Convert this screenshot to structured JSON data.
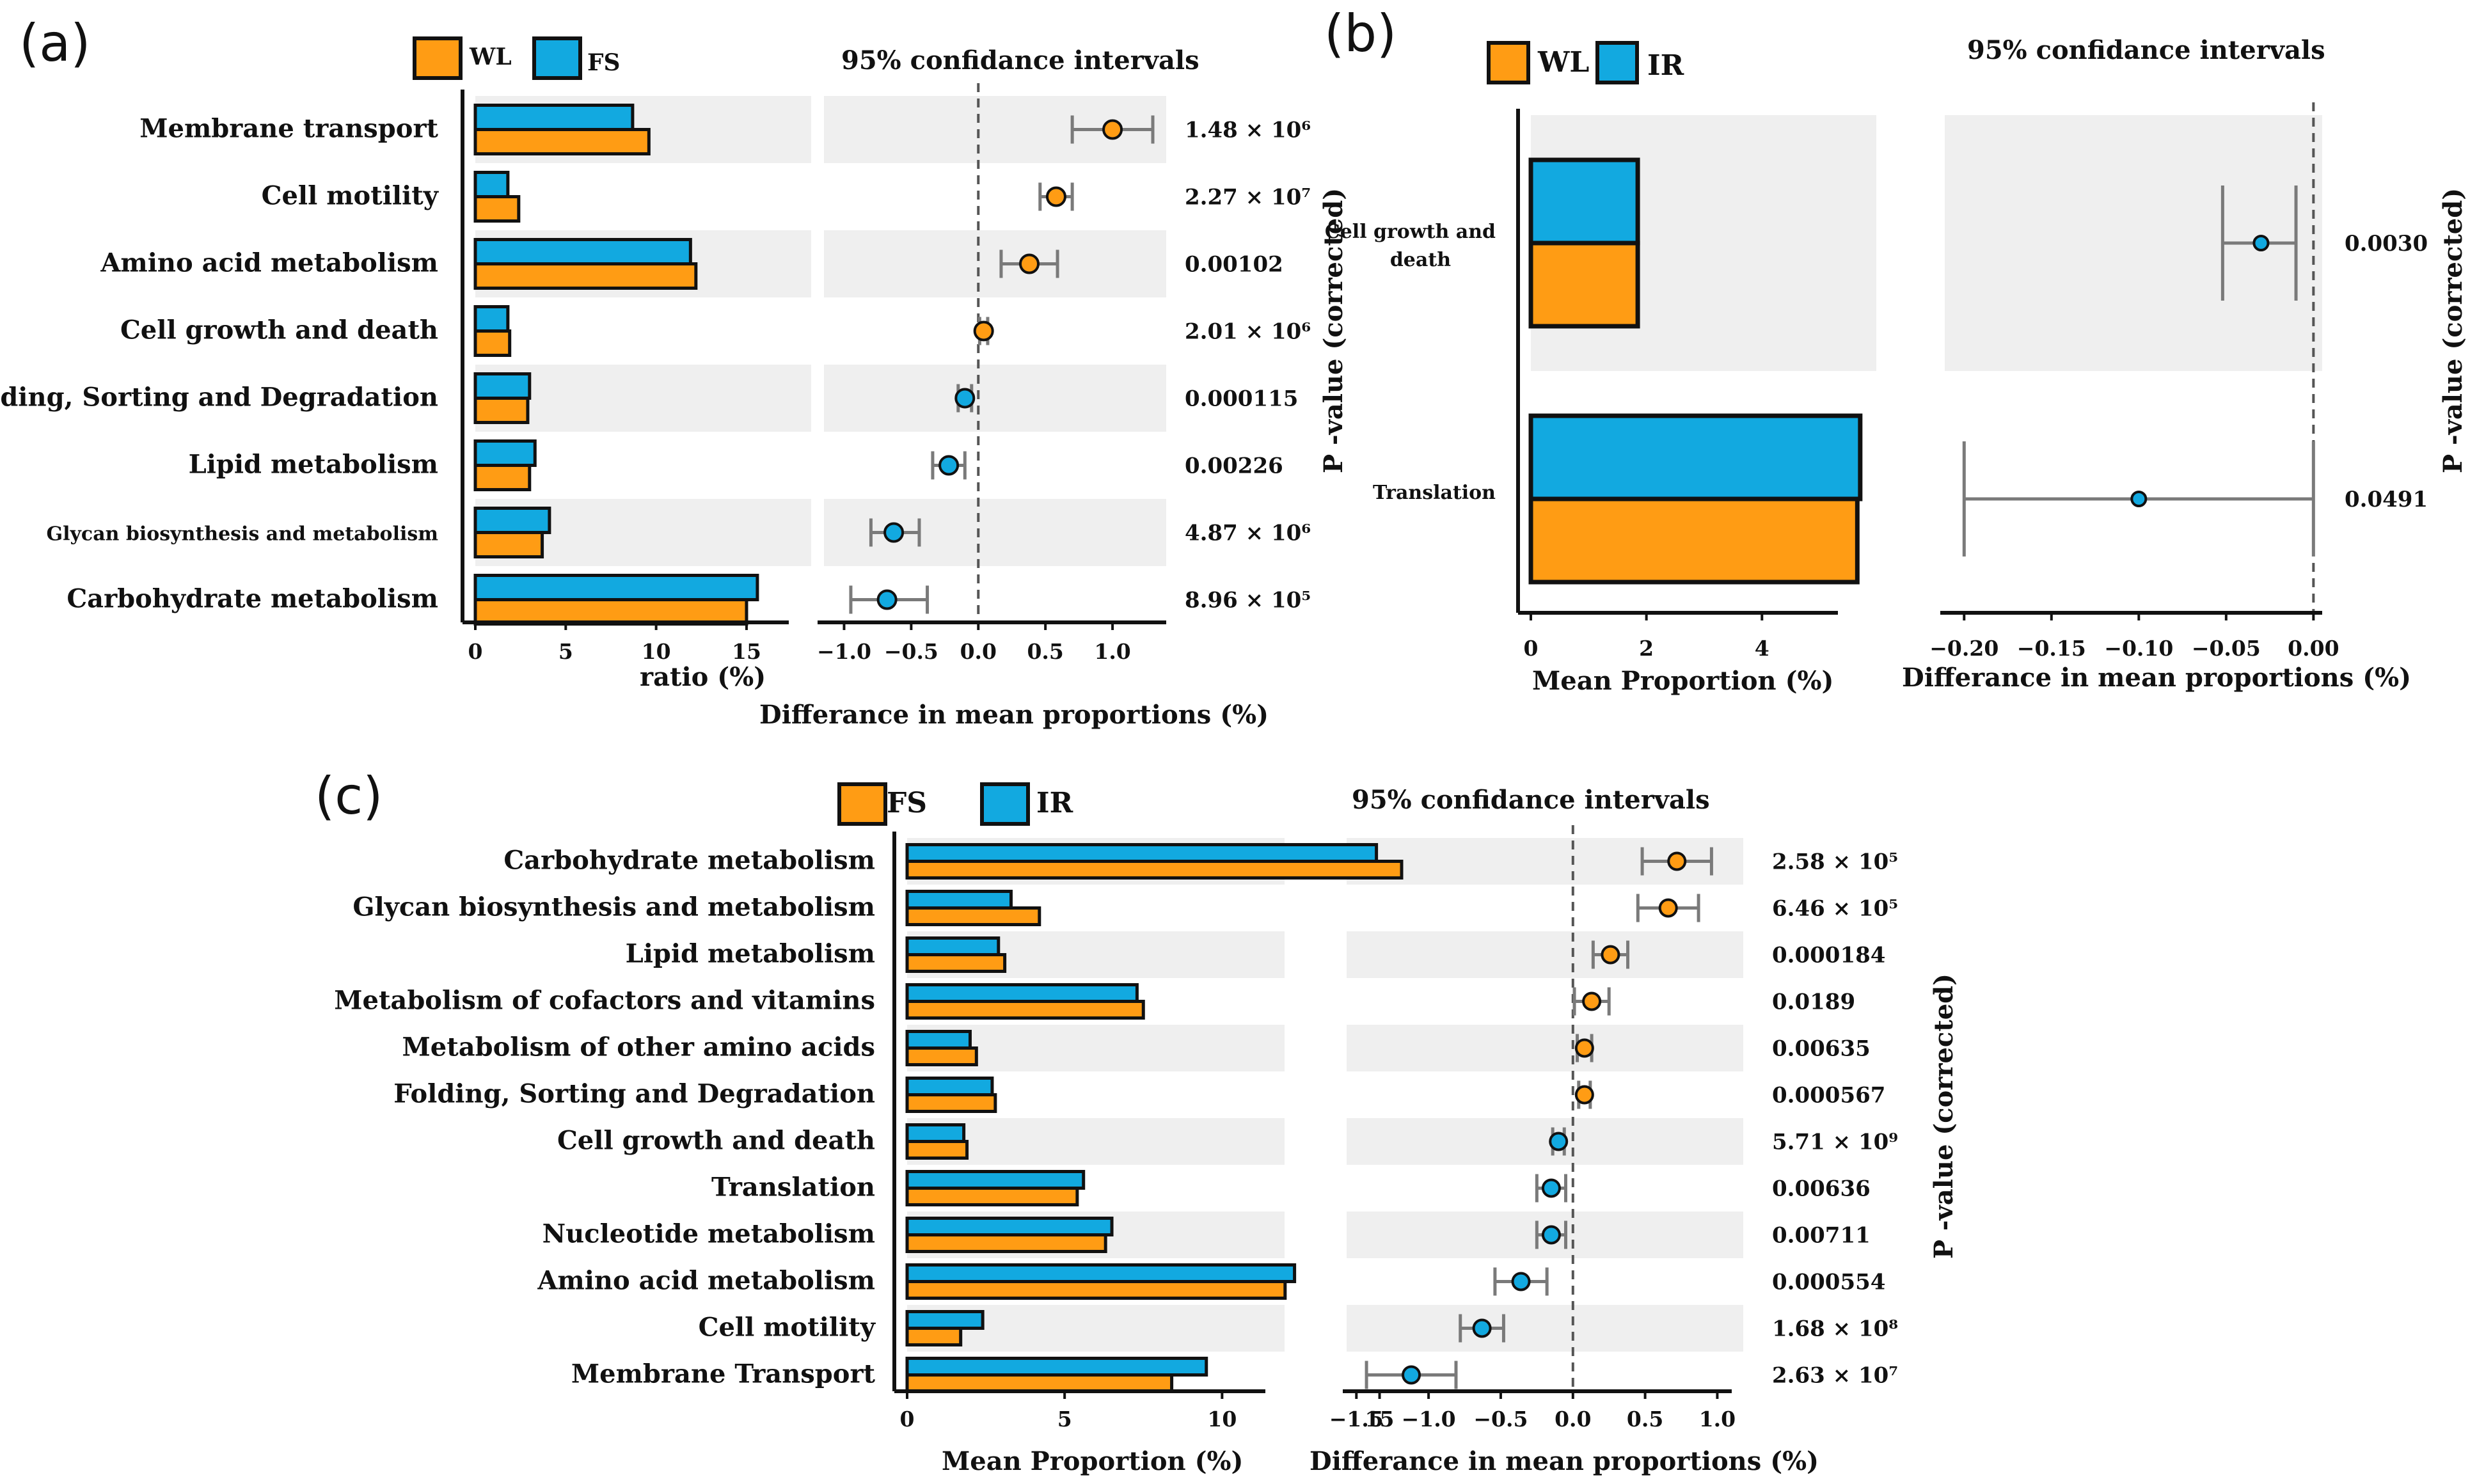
{
  "figure": {
    "colors": {
      "orange": "#FF9C14",
      "blue": "#12A9E0",
      "band": "#EFEFEF",
      "errbar": "#7A7A7A",
      "edge": "#111111"
    }
  },
  "chart_data": [
    {
      "panel": "(a)",
      "type": "extended_error_bar",
      "legend": [
        "WL",
        "FS"
      ],
      "categories": [
        "Membrane transport",
        "Cell motility",
        "Amino acid metabolism",
        "Cell growth and death",
        "Folding, Sorting and Degradation",
        "Lipid metabolism",
        "Glycan biosynthesis and metabolism",
        "Carbohydrate metabolism"
      ],
      "series": [
        {
          "name": "WL",
          "color": "orange",
          "values": [
            9.6,
            2.4,
            12.2,
            1.9,
            2.9,
            3.0,
            3.7,
            15.0
          ]
        },
        {
          "name": "FS",
          "color": "blue",
          "values": [
            8.7,
            1.8,
            11.9,
            1.8,
            3.0,
            3.3,
            4.1,
            15.6
          ]
        }
      ],
      "bar_xlabel": "ratio (%)",
      "bar_xticks": [
        0,
        5,
        10,
        15
      ],
      "bar_xlim": [
        0,
        17
      ],
      "ci_title": "95% confidance intervals",
      "ci_xlabel": "Differance in mean proportions (%)",
      "ci_xticks": [
        -1.0,
        -0.5,
        0.0,
        0.5,
        1.0
      ],
      "ci_xlim": [
        -1.15,
        1.4
      ],
      "diff": [
        1.0,
        0.58,
        0.38,
        0.04,
        -0.1,
        -0.22,
        -0.63,
        -0.68
      ],
      "ci_low": [
        0.7,
        0.46,
        0.17,
        0.01,
        -0.15,
        -0.34,
        -0.8,
        -0.95
      ],
      "ci_high": [
        1.3,
        0.7,
        0.59,
        0.07,
        -0.05,
        -0.1,
        -0.44,
        -0.38
      ],
      "p_values": [
        "1.48 × 10⁶",
        "2.27 × 10⁷",
        "0.00102",
        "2.01 × 10⁶",
        "0.000115",
        "0.00226",
        "4.87 × 10⁶",
        "8.96 × 10⁵"
      ]
    },
    {
      "panel": "(b)",
      "type": "extended_error_bar",
      "legend": [
        "WL",
        "IR"
      ],
      "categories": [
        "Cell growth and death",
        "Translation"
      ],
      "series": [
        {
          "name": "WL",
          "color": "orange",
          "values": [
            1.85,
            5.65
          ]
        },
        {
          "name": "IR",
          "color": "blue",
          "values": [
            1.85,
            5.7
          ]
        }
      ],
      "bar_xlabel": "Mean Proportion (%)",
      "bar_xticks": [
        0,
        2,
        4
      ],
      "bar_xlim": [
        0,
        6.2
      ],
      "ci_title": "95% confidance intervals",
      "ci_xlabel": "Differance in mean proportions (%)",
      "ci_xticks": [
        -0.2,
        -0.15,
        -0.1,
        -0.05,
        0.0
      ],
      "ci_tick_labels": [
        "−0.20",
        "−0.15",
        "−0.10",
        "−0.05",
        "0.00"
      ],
      "ci_xlim": [
        -0.21,
        0.005
      ],
      "diff": [
        -0.03,
        -0.1
      ],
      "ci_low": [
        -0.052,
        -0.2
      ],
      "ci_high": [
        -0.01,
        0.0
      ],
      "p_values": [
        "0.0030",
        "0.0491"
      ],
      "p_axis_label": "P -value (corrected)"
    },
    {
      "panel": "(c)",
      "type": "extended_error_bar",
      "legend": [
        "FS",
        "IR"
      ],
      "categories": [
        "Carbohydrate metabolism",
        "Glycan biosynthesis and metabolism",
        "Lipid metabolism",
        "Metabolism of cofactors and vitamins",
        "Metabolism of other amino acids",
        "Folding, Sorting and Degradation",
        "Cell growth and death",
        "Translation",
        "Nucleotide metabolism",
        "Amino acid metabolism",
        "Cell motility",
        "Membrane Transport"
      ],
      "series": [
        {
          "name": "FS",
          "color": "orange",
          "values": [
            15.7,
            4.2,
            3.1,
            7.5,
            2.2,
            2.8,
            1.9,
            5.4,
            6.3,
            12.0,
            1.7,
            8.4
          ]
        },
        {
          "name": "IR",
          "color": "blue",
          "values": [
            14.9,
            3.3,
            2.9,
            7.3,
            2.0,
            2.7,
            1.8,
            5.6,
            6.5,
            12.3,
            2.4,
            9.5
          ]
        }
      ],
      "bar_xlabel": "Mean Proportion (%)",
      "bar_xticks": [
        0,
        5,
        10,
        15
      ],
      "bar_xlim": [
        0,
        17
      ],
      "ci_title": "95% confidance intervals",
      "ci_xlabel": "Differance in mean proportions (%)",
      "ci_xticks": [
        -1.5,
        -1.0,
        -0.5,
        0.0,
        0.5,
        1.0
      ],
      "ci_tick_labels": [
        "−1.5",
        "−1.0",
        "−0.5",
        "0.0",
        "0.5",
        "1.0"
      ],
      "ci_xlim": [
        -1.55,
        1.1
      ],
      "diff": [
        0.72,
        0.66,
        0.26,
        0.13,
        0.08,
        0.08,
        -0.1,
        -0.15,
        -0.15,
        -0.36,
        -0.63,
        -1.12
      ],
      "ci_low": [
        0.48,
        0.45,
        0.14,
        0.01,
        0.03,
        0.04,
        -0.14,
        -0.25,
        -0.25,
        -0.54,
        -0.78,
        -1.43
      ],
      "ci_high": [
        0.96,
        0.87,
        0.38,
        0.25,
        0.13,
        0.12,
        -0.06,
        -0.05,
        -0.05,
        -0.18,
        -0.48,
        -0.81
      ],
      "p_values": [
        "2.58 × 10⁵",
        "6.46 × 10⁵",
        "0.000184",
        "0.0189",
        "0.00635",
        "0.000567",
        "5.71 × 10⁹",
        "0.00636",
        "0.00711",
        "0.000554",
        "1.68 × 10⁸",
        "2.63 × 10⁷"
      ],
      "p_axis_label": "P -value (corrected)"
    }
  ]
}
